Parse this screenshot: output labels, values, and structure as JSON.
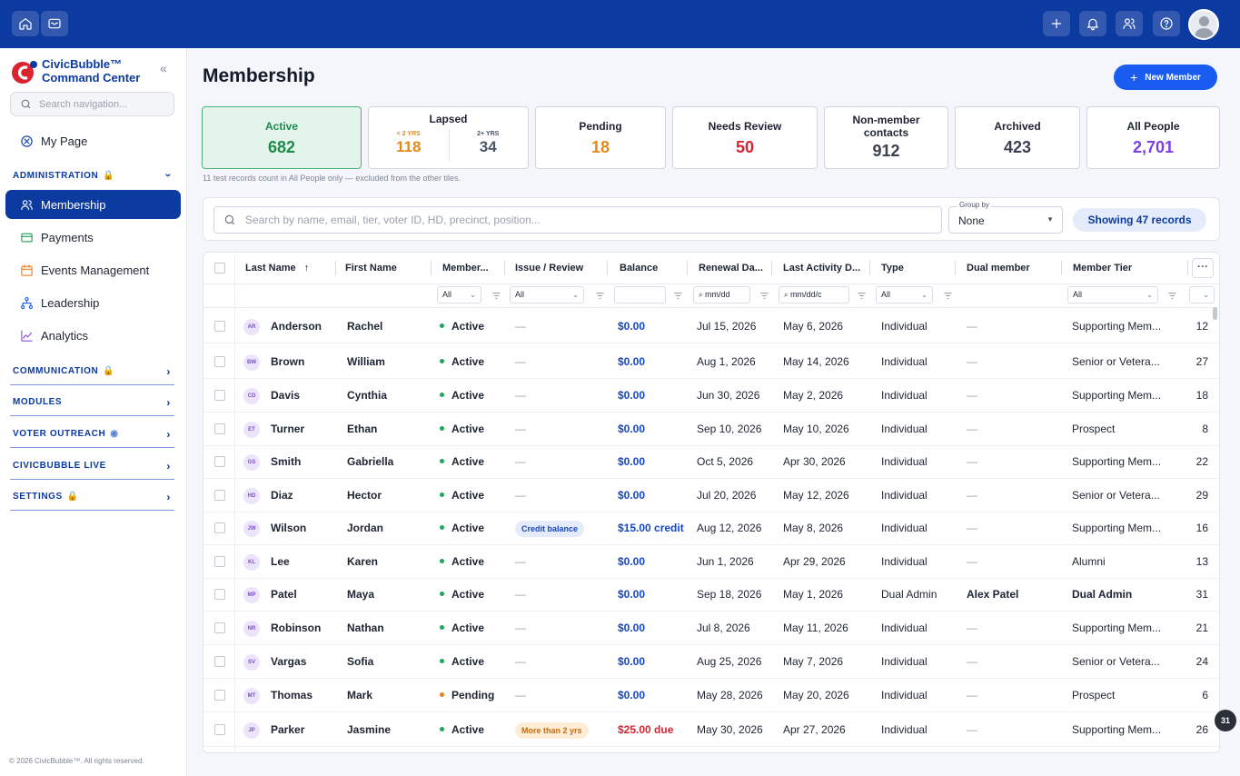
{
  "brand": {
    "line1": "CivicBubble™",
    "line2": "Command Center"
  },
  "sidebar": {
    "search_placeholder": "Search navigation...",
    "my_page": "My Page",
    "administration": {
      "label": "ADMINISTRATION",
      "items": [
        {
          "label": "Membership",
          "icon": "users-icon"
        },
        {
          "label": "Payments",
          "icon": "card-icon"
        },
        {
          "label": "Events Management",
          "icon": "calendar-icon"
        },
        {
          "label": "Leadership",
          "icon": "org-icon"
        },
        {
          "label": "Analytics",
          "icon": "chart-icon"
        }
      ]
    },
    "sections": [
      {
        "label": "COMMUNICATION",
        "badge": "lock"
      },
      {
        "label": "MODULES",
        "badge": ""
      },
      {
        "label": "VOTER OUTREACH",
        "badge": "eye"
      },
      {
        "label": "CIVICBUBBLE LIVE",
        "badge": ""
      },
      {
        "label": "SETTINGS",
        "badge": "lock"
      }
    ],
    "footer": "© 2026 CivicBubble™. All rights reserved."
  },
  "page": {
    "title": "Membership",
    "new_button": "New Member"
  },
  "tiles": {
    "active": {
      "label": "Active",
      "value": "682",
      "color": "#1f8a4c"
    },
    "lapsed": {
      "label": "Lapsed",
      "under2": {
        "label": "< 2 YRS",
        "value": "118",
        "color": "#e08a1e"
      },
      "over2": {
        "label": "2+ YRS",
        "value": "34",
        "color": "#4b5567"
      }
    },
    "pending": {
      "label": "Pending",
      "value": "18",
      "color": "#e08a1e"
    },
    "needs_review": {
      "label": "Needs Review",
      "value": "50",
      "color": "#d9232e"
    },
    "non_member": {
      "label": "Non-member contacts",
      "value": "912",
      "color": "#3a4150"
    },
    "archived": {
      "label": "Archived",
      "value": "423",
      "color": "#3a4150"
    },
    "all_people": {
      "label": "All People",
      "value": "2,701",
      "color": "#7b3fe4"
    },
    "note": "11 test records count in All People only — excluded from the other tiles."
  },
  "filters": {
    "search_placeholder": "Search by name, email, tier, voter ID, HD, precinct, position...",
    "group_by_label": "Group by",
    "group_by_value": "None",
    "showing": "Showing 47 records"
  },
  "table": {
    "headers": {
      "last_name": "Last Name",
      "first_name": "First Name",
      "member": "Member...",
      "issue": "Issue / Review",
      "balance": "Balance",
      "renewal": "Renewal Da...",
      "last_activity": "Last Activity D...",
      "type": "Type",
      "dual": "Dual member",
      "tier": "Member Tier"
    },
    "filter_values": {
      "member": "All",
      "issue": "All",
      "renewal": "mm/dd",
      "last_activity": "mm/dd/c",
      "type": "All",
      "tier": "All"
    },
    "more_label": "···",
    "rows": [
      {
        "initials": "AR",
        "last": "Anderson",
        "first": "Rachel",
        "status": "Active",
        "issue": "—",
        "balance": "$0.00",
        "renewal": "Jul 15, 2026",
        "activity": "May 6, 2026",
        "type": "Individual",
        "dual": "—",
        "tier": "Supporting Mem...",
        "num": "12"
      },
      {
        "initials": "BW",
        "last": "Brown",
        "first": "William",
        "status": "Active",
        "issue": "—",
        "balance": "$0.00",
        "renewal": "Aug 1, 2026",
        "activity": "May 14, 2026",
        "type": "Individual",
        "dual": "—",
        "tier": "Senior or Vetera...",
        "num": "27"
      },
      {
        "initials": "CD",
        "last": "Davis",
        "first": "Cynthia",
        "status": "Active",
        "issue": "—",
        "balance": "$0.00",
        "renewal": "Jun 30, 2026",
        "activity": "May 2, 2026",
        "type": "Individual",
        "dual": "—",
        "tier": "Supporting Mem...",
        "num": "18"
      },
      {
        "initials": "ET",
        "last": "Turner",
        "first": "Ethan",
        "status": "Active",
        "issue": "—",
        "balance": "$0.00",
        "renewal": "Sep 10, 2026",
        "activity": "May 10, 2026",
        "type": "Individual",
        "dual": "—",
        "tier": "Prospect",
        "num": "8"
      },
      {
        "initials": "GS",
        "last": "Smith",
        "first": "Gabriella",
        "status": "Active",
        "issue": "—",
        "balance": "$0.00",
        "renewal": "Oct 5, 2026",
        "activity": "Apr 30, 2026",
        "type": "Individual",
        "dual": "—",
        "tier": "Supporting Mem...",
        "num": "22"
      },
      {
        "initials": "HD",
        "last": "Diaz",
        "first": "Hector",
        "status": "Active",
        "issue": "—",
        "balance": "$0.00",
        "renewal": "Jul 20, 2026",
        "activity": "May 12, 2026",
        "type": "Individual",
        "dual": "—",
        "tier": "Senior or Vetera...",
        "num": "29"
      },
      {
        "initials": "JW",
        "last": "Wilson",
        "first": "Jordan",
        "status": "Active",
        "issue": "Credit balance",
        "balance": "$15.00 credit",
        "renewal": "Aug 12, 2026",
        "activity": "May 8, 2026",
        "type": "Individual",
        "dual": "—",
        "tier": "Supporting Mem...",
        "num": "16"
      },
      {
        "initials": "KL",
        "last": "Lee",
        "first": "Karen",
        "status": "Active",
        "issue": "—",
        "balance": "$0.00",
        "renewal": "Jun 1, 2026",
        "activity": "Apr 29, 2026",
        "type": "Individual",
        "dual": "—",
        "tier": "Alumni",
        "num": "13"
      },
      {
        "initials": "MP",
        "last": "Patel",
        "first": "Maya",
        "status": "Active",
        "issue": "—",
        "balance": "$0.00",
        "renewal": "Sep 18, 2026",
        "activity": "May 1, 2026",
        "type": "Dual Admin",
        "dual": "Alex Patel",
        "tier": "Dual Admin",
        "num": "31"
      },
      {
        "initials": "NR",
        "last": "Robinson",
        "first": "Nathan",
        "status": "Active",
        "issue": "—",
        "balance": "$0.00",
        "renewal": "Jul 8, 2026",
        "activity": "May 11, 2026",
        "type": "Individual",
        "dual": "—",
        "tier": "Supporting Mem...",
        "num": "21"
      },
      {
        "initials": "SV",
        "last": "Vargas",
        "first": "Sofia",
        "status": "Active",
        "issue": "—",
        "balance": "$0.00",
        "renewal": "Aug 25, 2026",
        "activity": "May 7, 2026",
        "type": "Individual",
        "dual": "—",
        "tier": "Senior or Vetera...",
        "num": "24"
      },
      {
        "initials": "MT",
        "last": "Thomas",
        "first": "Mark",
        "status": "Pending",
        "issue": "—",
        "balance": "$0.00",
        "renewal": "May 28, 2026",
        "activity": "May 20, 2026",
        "type": "Individual",
        "dual": "—",
        "tier": "Prospect",
        "num": "6"
      },
      {
        "initials": "JP",
        "last": "Parker",
        "first": "Jasmine",
        "status": "Active",
        "issue": "More than 2 yrs",
        "balance": "$25.00 due",
        "renewal": "May 30, 2026",
        "activity": "Apr 27, 2026",
        "type": "Individual",
        "dual": "—",
        "tier": "Supporting Mem...",
        "num": "26"
      }
    ]
  },
  "corner_badge": "31",
  "colors": {
    "brand": "#0b3aa0",
    "accent": "#1a5cf0",
    "active_dot": "#22a55a",
    "pending_dot": "#f07d1d",
    "balance": "#1446c8",
    "due": "#d9232e"
  }
}
